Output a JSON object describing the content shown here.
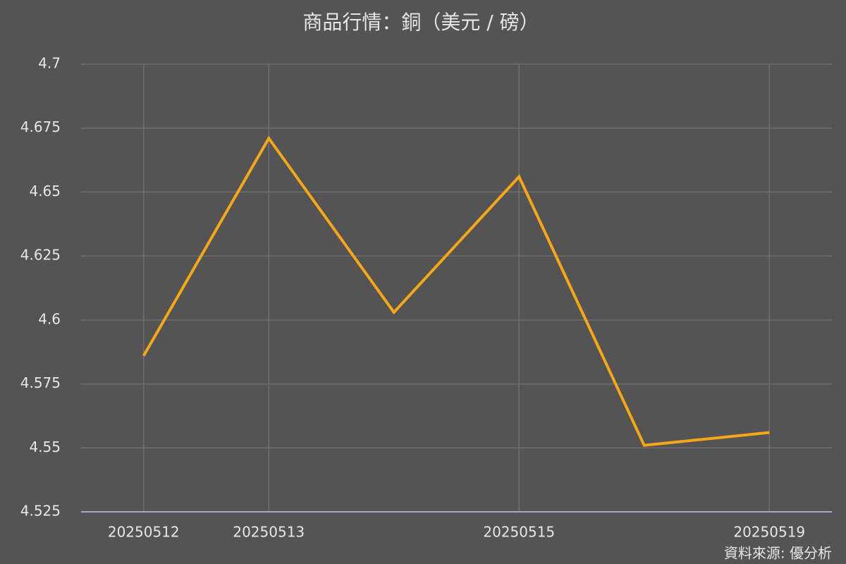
{
  "chart_data": {
    "type": "line",
    "title": "商品行情：銅（美元 / 磅）",
    "categories": [
      "20250512",
      "20250513",
      null,
      "20250515",
      null,
      "20250519"
    ],
    "series": [
      {
        "name": "銅",
        "color": "#f5a716",
        "values": [
          4.586,
          4.671,
          4.603,
          4.656,
          4.551,
          4.556
        ]
      }
    ],
    "ylim": [
      4.525,
      4.7
    ],
    "yticks": [
      4.525,
      4.55,
      4.575,
      4.6,
      4.625,
      4.65,
      4.675,
      4.7
    ],
    "grid": true,
    "source": "資料來源: 優分析"
  }
}
